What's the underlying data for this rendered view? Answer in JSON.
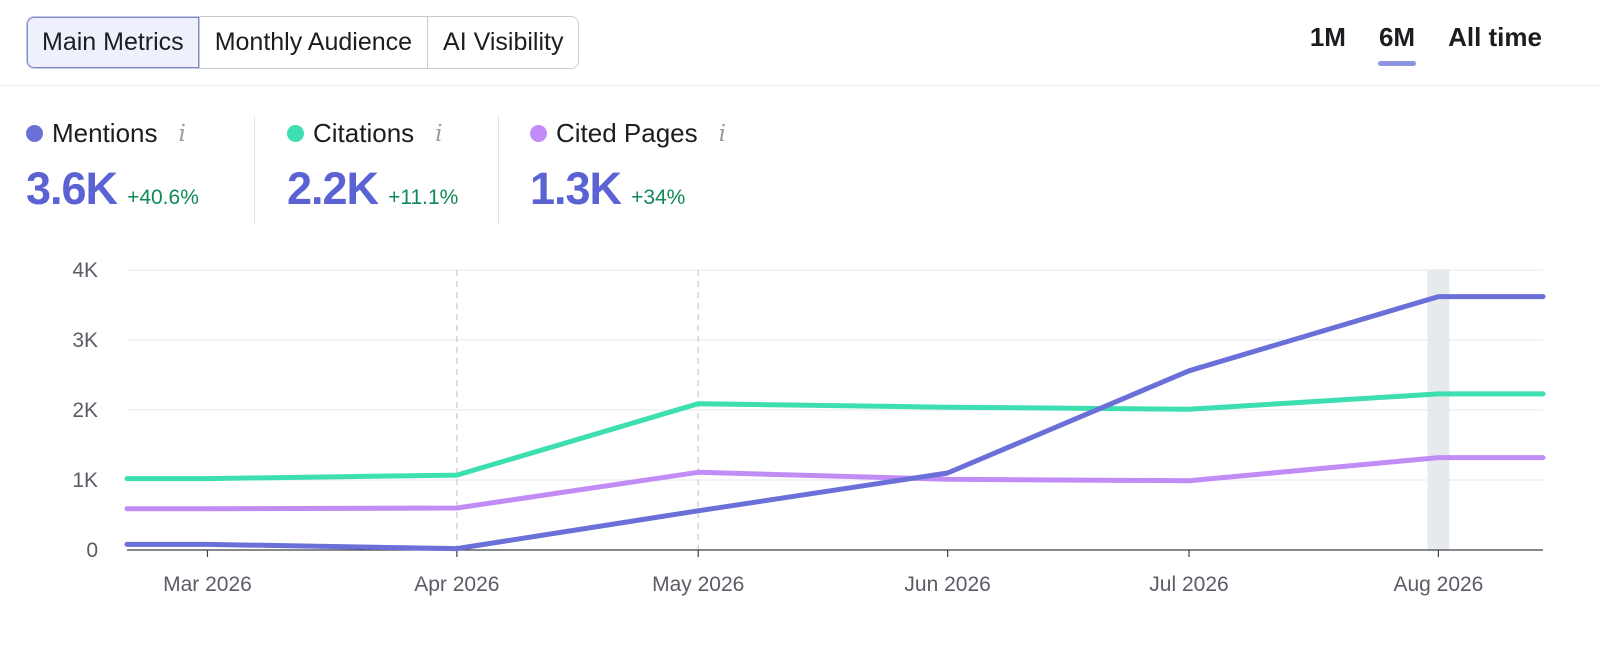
{
  "tabs": [
    {
      "label": "Main Metrics",
      "active": true
    },
    {
      "label": "Monthly Audience",
      "active": false
    },
    {
      "label": "AI Visibility",
      "active": false
    }
  ],
  "ranges": [
    {
      "label": "1M",
      "active": false
    },
    {
      "label": "6M",
      "active": true
    },
    {
      "label": "All time",
      "active": false
    }
  ],
  "metrics": [
    {
      "label": "Mentions",
      "value": "3.6K",
      "change": "+40.6%",
      "color": "#6b70d8",
      "info": "i"
    },
    {
      "label": "Citations",
      "value": "2.2K",
      "change": "+11.1%",
      "color": "#3ddfb1",
      "info": "i"
    },
    {
      "label": "Cited Pages",
      "value": "1.3K",
      "change": "+34%",
      "color": "#c28cf7",
      "info": "i"
    }
  ],
  "chart_data": {
    "type": "line",
    "x_labels": [
      "Mar 2026",
      "Apr 2026",
      "May 2026",
      "Jun 2026",
      "Jul 2026",
      "Aug 2026"
    ],
    "x": [
      "2026-02-19",
      "2026-03-01",
      "2026-04-01",
      "2026-05-01",
      "2026-06-01",
      "2026-07-01",
      "2026-08-01",
      "2026-08-14"
    ],
    "ylim": [
      0,
      4000
    ],
    "yticks": [
      0,
      1000,
      2000,
      3000,
      4000
    ],
    "ytick_labels": [
      "0",
      "1K",
      "2K",
      "3K",
      "4K"
    ],
    "grid": true,
    "dashed_x_gridlines": [
      "Apr 2026",
      "May 2026"
    ],
    "highlight_x": "Aug 2026",
    "series": [
      {
        "name": "Mentions",
        "color": "#6b70d8",
        "values": [
          80,
          80,
          20,
          560,
          1100,
          2560,
          3620,
          3620
        ]
      },
      {
        "name": "Citations",
        "color": "#3ddfb1",
        "values": [
          1020,
          1020,
          1070,
          2090,
          2040,
          2010,
          2230,
          2230
        ]
      },
      {
        "name": "Cited Pages",
        "color": "#c28cf7",
        "values": [
          590,
          590,
          600,
          1110,
          1010,
          990,
          1320,
          1320
        ]
      }
    ]
  }
}
